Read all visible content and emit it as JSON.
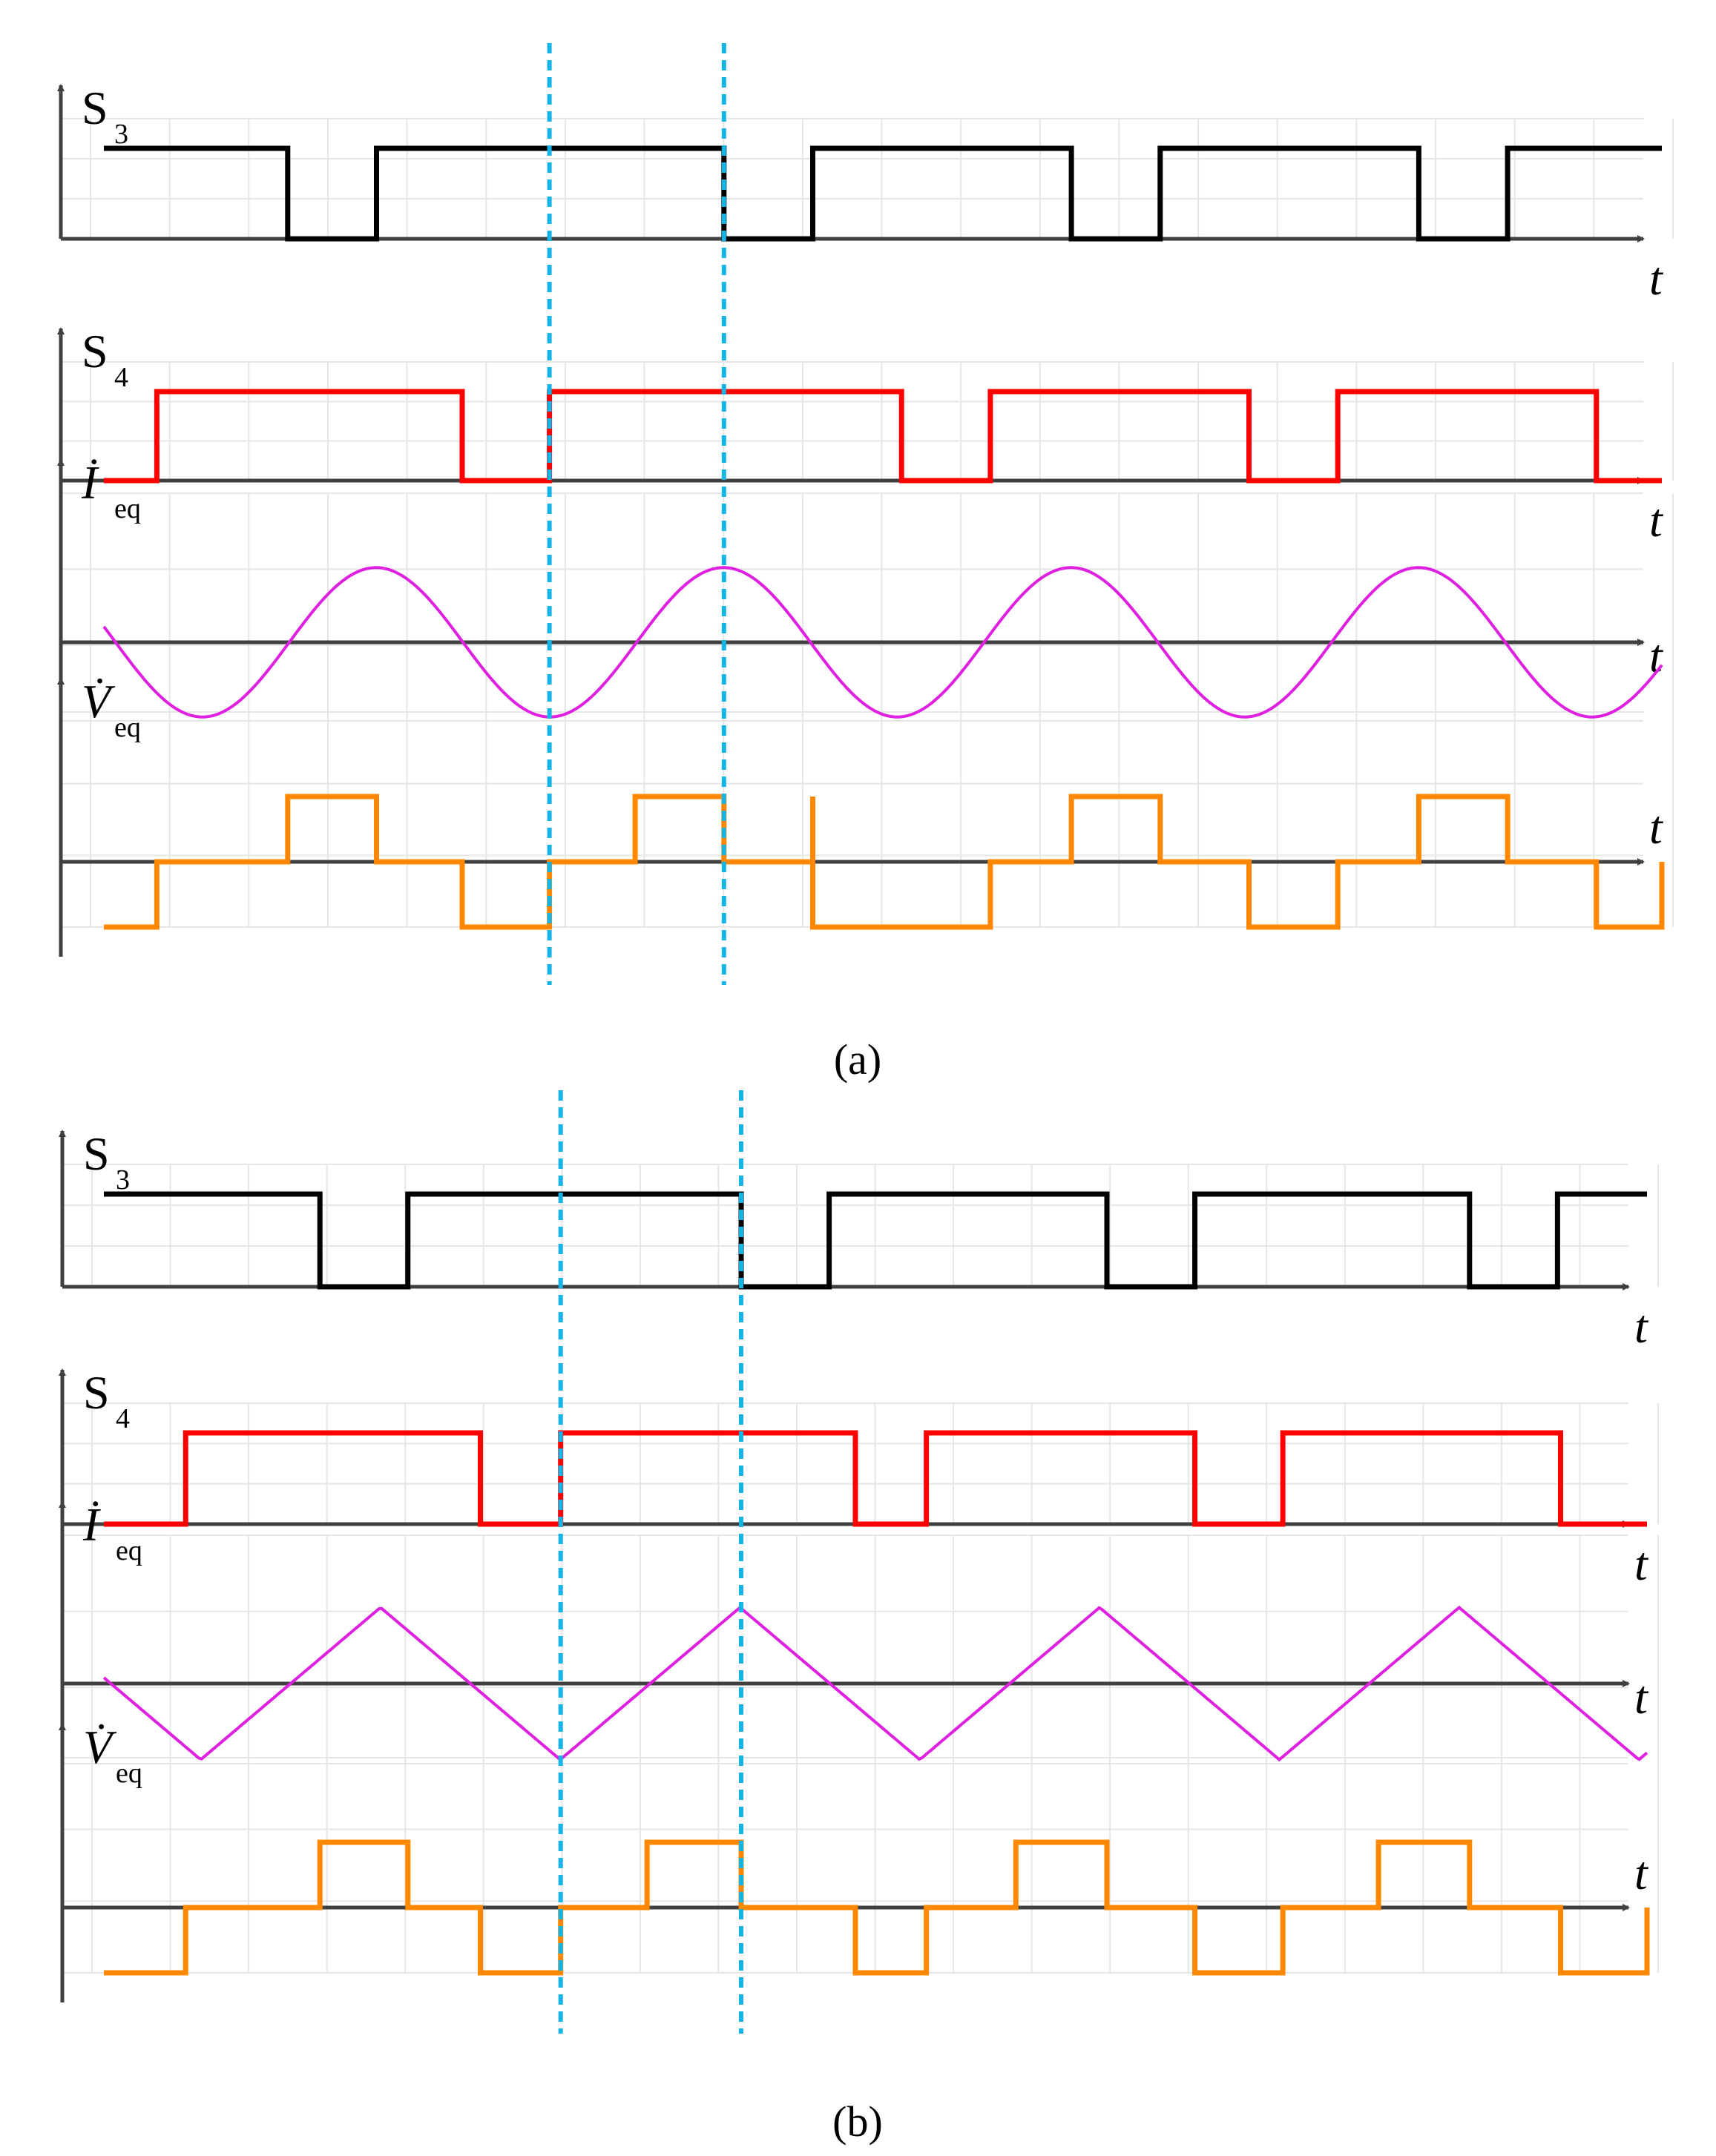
{
  "colors": {
    "s3": "#000000",
    "s4": "#ff0000",
    "ieq": "#e020e0",
    "veq": "#ff8800",
    "markers": "#14b4e6",
    "axis": "#404040",
    "grid": "#e6e6e6"
  },
  "chart_data": [
    {
      "panel": "a",
      "caption": "(a)",
      "type": "line",
      "time_label": "t",
      "x_range": [
        0,
        1
      ],
      "markers_x": [
        0.286,
        0.398
      ],
      "grid": true,
      "series": [
        {
          "name": "S3",
          "label": "S",
          "sub": "3",
          "signal": "switching",
          "edges": [
            0,
            0.118,
            0.175,
            0.398,
            0.455,
            0.621,
            0.678,
            0.844,
            0.901,
            1.0
          ],
          "high_first": true
        },
        {
          "name": "S4",
          "label": "S",
          "sub": "4",
          "signal": "switching",
          "edges": [
            0,
            0.034,
            0.23,
            0.286,
            0.512,
            0.569,
            0.735,
            0.792,
            0.958,
            1.0
          ],
          "high_first": false
        },
        {
          "name": "Ieq",
          "label": "İ",
          "sub": "eq",
          "signal": "sine",
          "period": 0.223,
          "phase": 0.119,
          "amplitude": 0.95
        },
        {
          "name": "Veq",
          "label": "V̇",
          "sub": "eq",
          "signal": "three-level",
          "transitions": [
            [
              0.0,
              -1
            ],
            [
              0.034,
              0
            ],
            [
              0.118,
              1
            ],
            [
              0.175,
              0
            ],
            [
              0.23,
              -1
            ],
            [
              0.286,
              0
            ],
            [
              0.341,
              1
            ],
            [
              0.398,
              0
            ],
            [
              0.455,
              1
            ],
            [
              0.455,
              -1
            ],
            [
              0.512,
              -1
            ],
            [
              0.569,
              0
            ],
            [
              0.621,
              1
            ],
            [
              0.678,
              0
            ],
            [
              0.735,
              -1
            ],
            [
              0.792,
              0
            ],
            [
              0.844,
              1
            ],
            [
              0.901,
              0
            ],
            [
              0.958,
              -1
            ],
            [
              1.0,
              0
            ]
          ]
        }
      ]
    },
    {
      "panel": "b",
      "caption": "(b)",
      "type": "line",
      "time_label": "t",
      "x_range": [
        0,
        1
      ],
      "markers_x": [
        0.296,
        0.413
      ],
      "grid": true,
      "series": [
        {
          "name": "S3",
          "label": "S",
          "sub": "3",
          "signal": "switching",
          "edges": [
            0,
            0.14,
            0.197,
            0.413,
            0.47,
            0.65,
            0.707,
            0.885,
            0.942,
            1.0
          ],
          "high_first": true
        },
        {
          "name": "S4",
          "label": "S",
          "sub": "4",
          "signal": "switching",
          "edges": [
            0,
            0.053,
            0.244,
            0.296,
            0.487,
            0.533,
            0.707,
            0.764,
            0.944,
            1.0
          ],
          "high_first": false
        },
        {
          "name": "Ieq",
          "label": "İ",
          "sub": "eq",
          "signal": "triangle",
          "period": 0.233,
          "phase": 0.121,
          "amplitude": 0.95
        },
        {
          "name": "Veq",
          "label": "V̇",
          "sub": "eq",
          "signal": "three-level",
          "transitions": [
            [
              0.0,
              -1
            ],
            [
              0.053,
              0
            ],
            [
              0.14,
              1
            ],
            [
              0.197,
              0
            ],
            [
              0.244,
              -1
            ],
            [
              0.296,
              0
            ],
            [
              0.352,
              1
            ],
            [
              0.413,
              0
            ],
            [
              0.487,
              -1
            ],
            [
              0.533,
              0
            ],
            [
              0.591,
              1
            ],
            [
              0.65,
              0
            ],
            [
              0.707,
              -1
            ],
            [
              0.764,
              0
            ],
            [
              0.826,
              1
            ],
            [
              0.885,
              0
            ],
            [
              0.944,
              -1
            ],
            [
              1.0,
              0
            ]
          ]
        }
      ]
    }
  ]
}
